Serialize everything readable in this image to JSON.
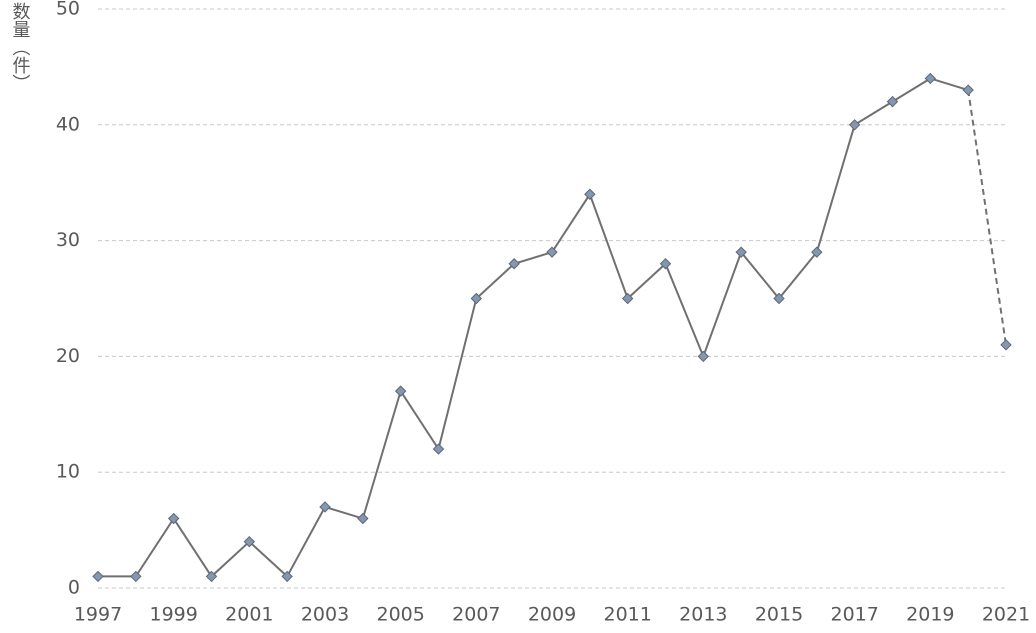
{
  "chart_data": {
    "type": "line",
    "y_label": "数量（件）",
    "x": [
      1997,
      1998,
      1999,
      2000,
      2001,
      2002,
      2003,
      2004,
      2005,
      2006,
      2007,
      2008,
      2009,
      2010,
      2011,
      2012,
      2013,
      2014,
      2015,
      2016,
      2017,
      2018,
      2019,
      2020,
      2021
    ],
    "series": [
      {
        "color": "#707070",
        "marker_color": "#8596b0",
        "values": [
          1,
          1,
          6,
          1,
          4,
          1,
          7,
          6,
          17,
          12,
          25,
          28,
          29,
          34,
          25,
          28,
          20,
          29,
          25,
          29,
          40,
          42,
          44,
          43,
          21
        ]
      }
    ],
    "dashed_last_segment": true,
    "xlim": [
      1997,
      2021
    ],
    "xticks": [
      1997,
      1999,
      2001,
      2003,
      2005,
      2007,
      2009,
      2011,
      2013,
      2015,
      2017,
      2019,
      2021
    ],
    "ylim": [
      0,
      50
    ],
    "yticks": [
      0,
      10,
      20,
      30,
      40,
      50
    ],
    "grid": true
  }
}
